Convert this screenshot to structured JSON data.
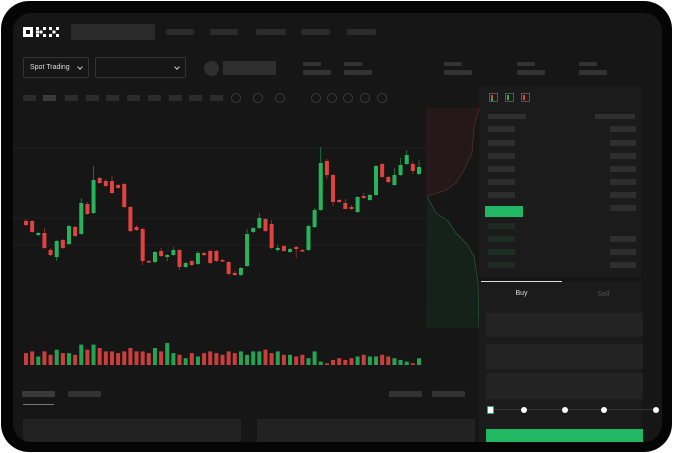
{
  "brand": {
    "logo": "OKX"
  },
  "header": {
    "market_selector": "Spot Trading"
  },
  "orderbook": {
    "view_icons": [
      "orderbook-both-icon",
      "orderbook-buy-icon",
      "orderbook-sell-icon"
    ]
  },
  "trade": {
    "tabs": [
      {
        "label": "Buy",
        "active": true
      },
      {
        "label": "Sell",
        "active": false
      }
    ],
    "leverage_steps": 5,
    "selected_step": 0
  },
  "colors": {
    "up": "#26b35a",
    "down": "#e0433f",
    "background": "#161616",
    "accent": "#22b863"
  },
  "chart_data": {
    "type": "candlestick",
    "title": "",
    "xlabel": "",
    "ylabel": "",
    "grid": true,
    "candles": [
      [
        57,
        59,
        52,
        53
      ],
      [
        57,
        58,
        45,
        46
      ],
      [
        43,
        46,
        42,
        45
      ],
      [
        45,
        50,
        29,
        30
      ],
      [
        28,
        30,
        22,
        23
      ],
      [
        21,
        38,
        17,
        37
      ],
      [
        38,
        39,
        29,
        30
      ],
      [
        34,
        53,
        33,
        52
      ],
      [
        51,
        52,
        41,
        42
      ],
      [
        44,
        80,
        43,
        75
      ],
      [
        74,
        76,
        63,
        64
      ],
      [
        65,
        112,
        64,
        98
      ],
      [
        100,
        101,
        94,
        95
      ],
      [
        97,
        99,
        91,
        92
      ],
      [
        97,
        102,
        84,
        85
      ],
      [
        93,
        94,
        89,
        90
      ],
      [
        94,
        95,
        70,
        71
      ],
      [
        71,
        72,
        46,
        47
      ],
      [
        51,
        53,
        47,
        48
      ],
      [
        49,
        50,
        13,
        17
      ],
      [
        17,
        18,
        15,
        16
      ],
      [
        16,
        27,
        15,
        26
      ],
      [
        27,
        30,
        21,
        22
      ],
      [
        21,
        24,
        17,
        23
      ],
      [
        23,
        31,
        22,
        28
      ],
      [
        28,
        29,
        8,
        11
      ],
      [
        11,
        16,
        10,
        15
      ],
      [
        17,
        18,
        12,
        13
      ],
      [
        14,
        27,
        13,
        25
      ],
      [
        25,
        26,
        22,
        23
      ],
      [
        27,
        28,
        14,
        15
      ],
      [
        27,
        28,
        16,
        17
      ],
      [
        18,
        19,
        16,
        17
      ],
      [
        16,
        17,
        3,
        4
      ],
      [
        5,
        7,
        2,
        3
      ],
      [
        3,
        11,
        2,
        10
      ],
      [
        12,
        49,
        11,
        44
      ],
      [
        46,
        51,
        45,
        50
      ],
      [
        50,
        65,
        49,
        60
      ],
      [
        59,
        60,
        46,
        47
      ],
      [
        54,
        58,
        29,
        30
      ],
      [
        28,
        33,
        26,
        30
      ],
      [
        32,
        33,
        26,
        27
      ],
      [
        26,
        30,
        25,
        29
      ],
      [
        31,
        32,
        20,
        29
      ],
      [
        28,
        29,
        26,
        27
      ],
      [
        28,
        53,
        27,
        52
      ],
      [
        51,
        70,
        50,
        68
      ],
      [
        68,
        131,
        67,
        115
      ],
      [
        117,
        119,
        99,
        103
      ],
      [
        103,
        104,
        72,
        76
      ],
      [
        78,
        79,
        75,
        76
      ],
      [
        75,
        79,
        69,
        69
      ],
      [
        71,
        73,
        68,
        69
      ],
      [
        66,
        82,
        65,
        81
      ],
      [
        82,
        85,
        79,
        80
      ],
      [
        78,
        84,
        77,
        83
      ],
      [
        83,
        113,
        82,
        112
      ],
      [
        114,
        115,
        100,
        101
      ],
      [
        101,
        102,
        95,
        96
      ],
      [
        93,
        110,
        92,
        103
      ],
      [
        103,
        120,
        102,
        113
      ],
      [
        114,
        128,
        113,
        123
      ],
      [
        114,
        117,
        104,
        107
      ],
      [
        104,
        118,
        103,
        111
      ]
    ],
    "volume": [
      7,
      8,
      5,
      8,
      6,
      9,
      7,
      7,
      6,
      12,
      9,
      12,
      10,
      8,
      8,
      7,
      8,
      10,
      8,
      8,
      7,
      10,
      8,
      13,
      7,
      6,
      4,
      7,
      5,
      7,
      8,
      7,
      6,
      8,
      7,
      8,
      6,
      8,
      8,
      9,
      7,
      8,
      6,
      6,
      5,
      6,
      4,
      8,
      2,
      1,
      3,
      4,
      3,
      4,
      5,
      6,
      5,
      5,
      6,
      5,
      4,
      3,
      2,
      1,
      4
    ]
  }
}
